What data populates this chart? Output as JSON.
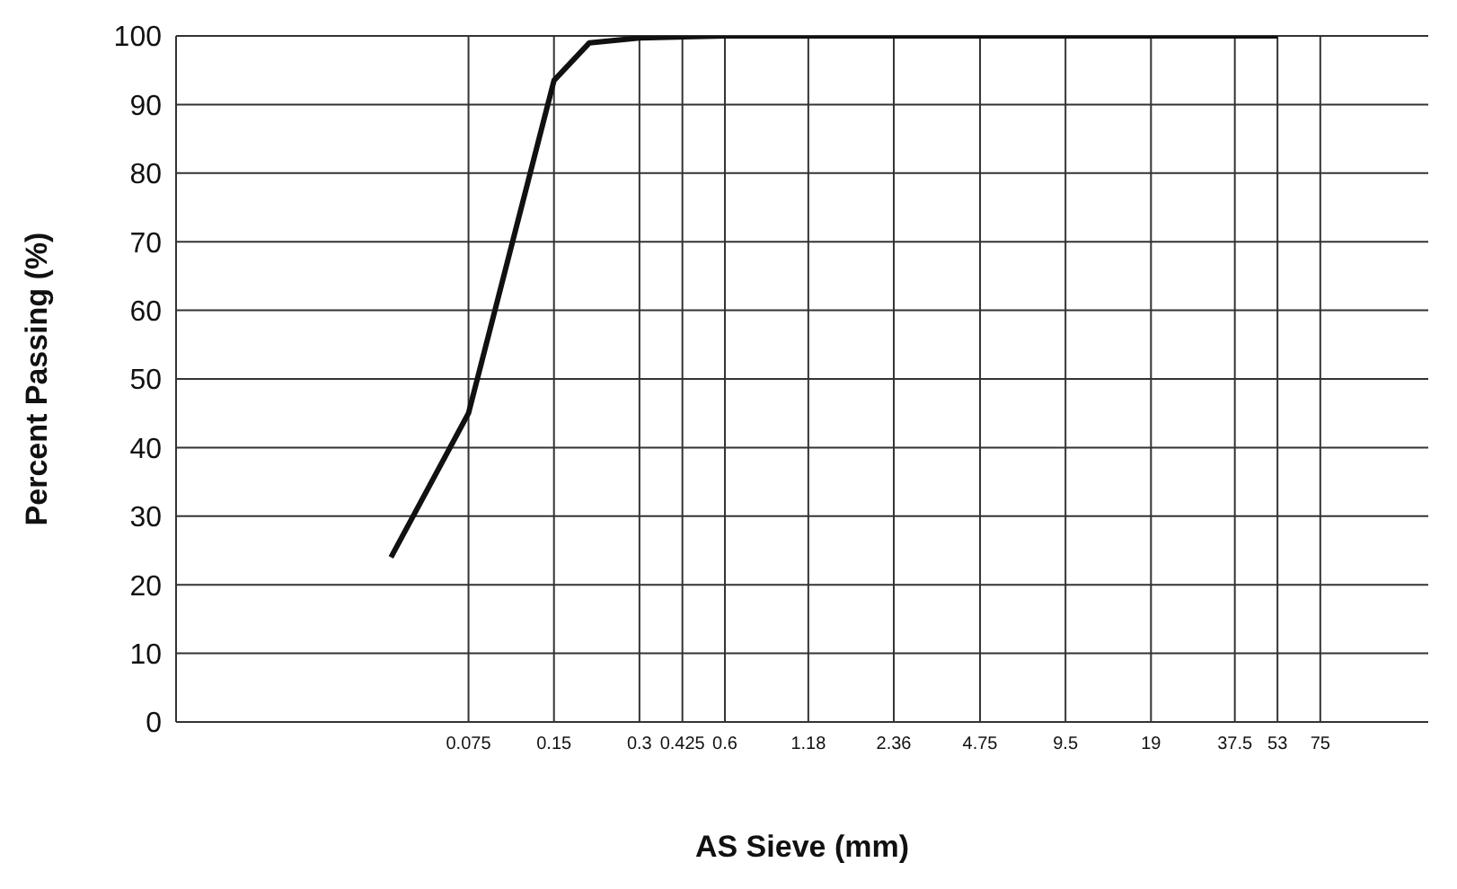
{
  "chart_data": {
    "type": "line",
    "xlabel": "AS Sieve (mm)",
    "ylabel": "Percent Passing (%)",
    "log": "x",
    "x": [
      0.04,
      0.075,
      0.15,
      0.2,
      0.3,
      0.6,
      2.36,
      9.5,
      53
    ],
    "series": [
      {
        "color": "#111111",
        "values": [
          24,
          45,
          93.5,
          99,
          99.7,
          100,
          100,
          100,
          100
        ]
      }
    ],
    "xlim": [
      0.007,
      180
    ],
    "xticks": [
      0.075,
      0.15,
      0.3,
      0.425,
      0.6,
      1.18,
      2.36,
      4.75,
      9.5,
      19,
      37.5,
      53,
      75
    ],
    "ylim": [
      0,
      100
    ],
    "yticks": [
      0,
      10,
      20,
      30,
      40,
      50,
      60,
      70,
      80,
      90,
      100
    ],
    "grid": true,
    "marker": "none",
    "line_style": "solid",
    "legend": false
  }
}
